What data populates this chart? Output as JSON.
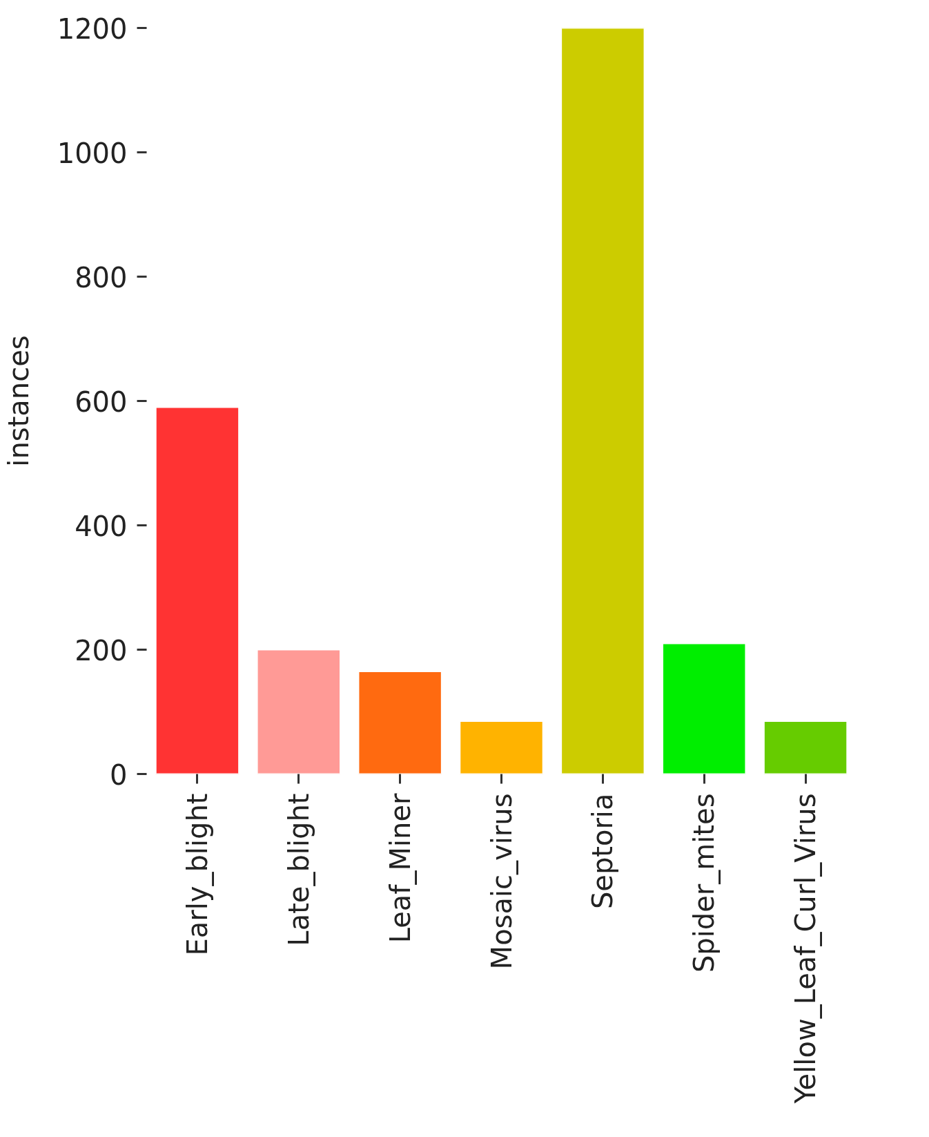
{
  "chart_data": {
    "type": "bar",
    "ylabel": "instances",
    "categories": [
      "Early_blight",
      "Late_blight",
      "Leaf_Miner",
      "Mosaic_virus",
      "Septoria",
      "Spider_mites",
      "Yellow_Leaf_Curl_Virus"
    ],
    "values": [
      590,
      200,
      165,
      85,
      1200,
      210,
      85
    ],
    "colors": [
      "#ff3333",
      "#ff9a96",
      "#ff6a10",
      "#ffb300",
      "#cccc00",
      "#00ee00",
      "#66cc00"
    ],
    "ylim": [
      0,
      1200
    ],
    "yticks": [
      0,
      200,
      400,
      600,
      800,
      1000,
      1200
    ]
  }
}
